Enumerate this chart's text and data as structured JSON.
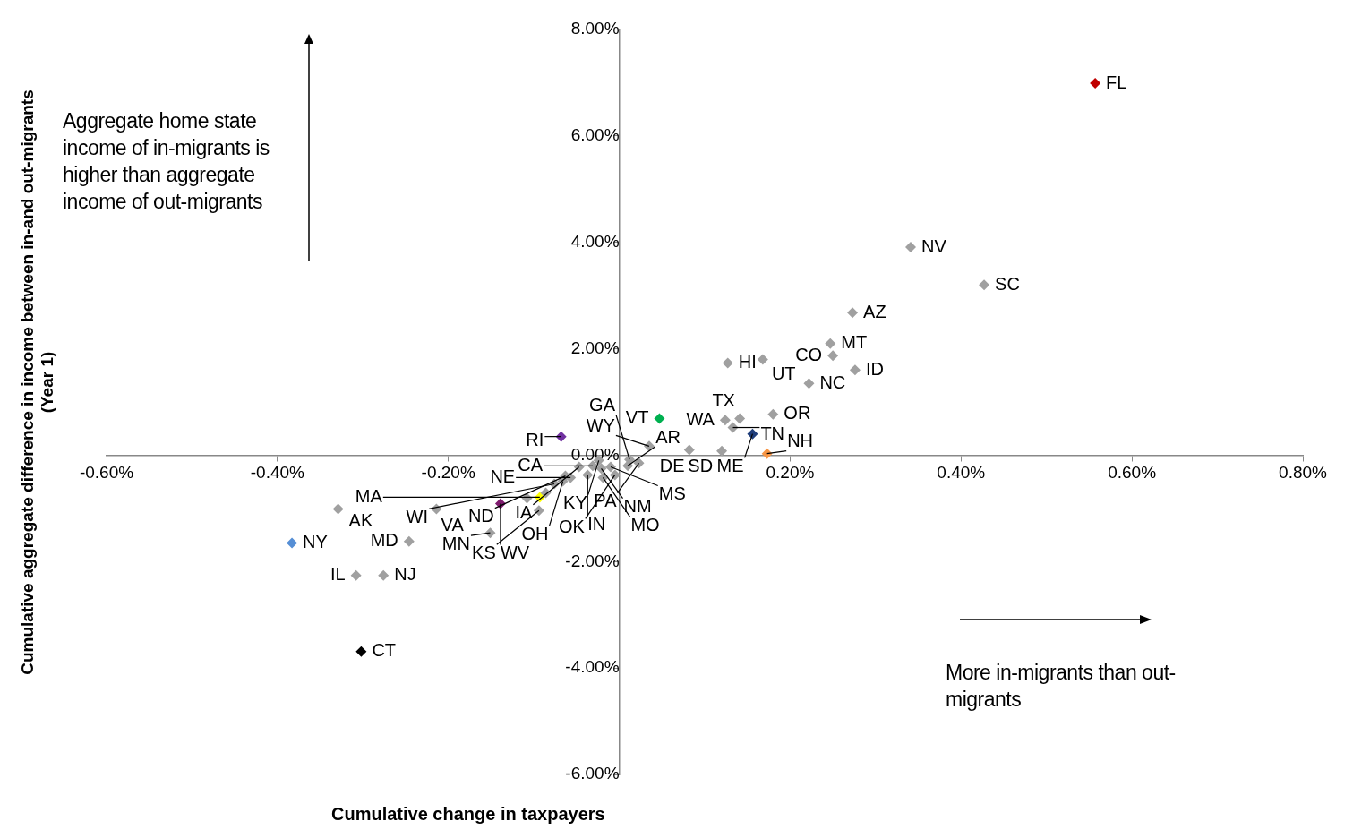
{
  "chart_data": {
    "type": "scatter",
    "xlabel": "Cumulative change in taxpayers",
    "ylabel": "Cumulative aggregate difference in income between in-and out-migrants\n(Year 1)",
    "marker": "diamond",
    "xlim": [
      -0.6,
      0.8
    ],
    "xticks": [
      {
        "value": -0.6,
        "label": "-0.60%"
      },
      {
        "value": -0.4,
        "label": "-0.40%"
      },
      {
        "value": -0.2,
        "label": "-0.20%"
      },
      {
        "value": 0,
        "label": null
      },
      {
        "value": 0.2,
        "label": "0.20%"
      },
      {
        "value": 0.4,
        "label": "0.40%"
      },
      {
        "value": 0.6,
        "label": "0.60%"
      },
      {
        "value": 0.8,
        "label": "0.80%"
      }
    ],
    "ylim": [
      -6,
      8
    ],
    "yticks": [
      {
        "value": -6,
        "label": "-6.00%"
      },
      {
        "value": -4,
        "label": "-4.00%"
      },
      {
        "value": -2,
        "label": "-2.00%"
      },
      {
        "value": 0,
        "label": "0.00%"
      },
      {
        "value": 2,
        "label": "2.00%"
      },
      {
        "value": 4,
        "label": "4.00%"
      },
      {
        "value": 6,
        "label": "6.00%"
      },
      {
        "value": 8,
        "label": "8.00%"
      }
    ],
    "series": [
      {
        "color": "#a0a0a0",
        "x": [
          0.341,
          0.427,
          0.273,
          0.247,
          0.25,
          0.276,
          0.222,
          0.168,
          0.127,
          0.18,
          0.124,
          0.141,
          0.133,
          0.12,
          0.035,
          0.082,
          -0.024,
          -0.031,
          -0.021,
          -0.01,
          0.01,
          0.012,
          0.023,
          -0.047,
          -0.037,
          -0.019,
          -0.005,
          -0.066,
          -0.057,
          -0.063,
          -0.076,
          -0.094,
          -0.151,
          -0.329,
          -0.214,
          -0.246,
          -0.276,
          -0.308,
          -0.108,
          -0.086
        ],
        "values": [
          3.91,
          3.2,
          2.68,
          2.1,
          1.87,
          1.6,
          1.35,
          1.8,
          1.73,
          0.77,
          0.66,
          0.69,
          0.52,
          0.08,
          0.17,
          0.1,
          -0.1,
          -0.2,
          -0.25,
          -0.22,
          -0.2,
          -0.08,
          -0.15,
          -0.22,
          -0.37,
          -0.42,
          -0.37,
          -0.49,
          -0.42,
          -0.39,
          -0.54,
          -1.04,
          -1.46,
          -1.01,
          -1.01,
          -1.62,
          -2.26,
          -2.26,
          -0.81,
          -0.71
        ]
      },
      {
        "color": "#c00000",
        "x": [
          0.557
        ],
        "values": [
          6.99
        ]
      },
      {
        "color": "#558ed5",
        "x": [
          -0.383
        ],
        "values": [
          -1.65
        ]
      },
      {
        "color": "#000000",
        "x": [
          -0.302
        ],
        "values": [
          -3.69
        ]
      },
      {
        "color": "#00b050",
        "x": [
          0.047
        ],
        "values": [
          0.69
        ]
      },
      {
        "color": "#7030a0",
        "x": [
          -0.068
        ],
        "values": [
          0.35
        ]
      },
      {
        "color": "#7f1a6e",
        "x": [
          -0.139
        ],
        "values": [
          -0.91
        ]
      },
      {
        "color": "#ffff00",
        "x": [
          -0.093
        ],
        "values": [
          -0.79
        ]
      },
      {
        "color": "#1f3d7a",
        "x": [
          0.156
        ],
        "values": [
          0.4
        ]
      },
      {
        "color": "#f79646",
        "x": [
          0.173
        ],
        "values": [
          0.03
        ]
      }
    ],
    "annotations": [
      "Aggregate home state income of in-migrants is higher than aggregate income of out-migrants",
      "More in-migrants than out-migrants",
      {
        "text": "FL",
        "x": 0.557,
        "y": 6.99
      },
      {
        "text": "NV",
        "x": 0.341,
        "y": 3.91
      },
      {
        "text": "SC",
        "x": 0.427,
        "y": 3.2
      },
      {
        "text": "AZ",
        "x": 0.273,
        "y": 2.68
      },
      {
        "text": "MT",
        "x": 0.247,
        "y": 2.1
      },
      {
        "text": "CO",
        "x": 0.25,
        "y": 1.87
      },
      {
        "text": "ID",
        "x": 0.276,
        "y": 1.6
      },
      {
        "text": "NC",
        "x": 0.222,
        "y": 1.35
      },
      {
        "text": "UT",
        "x": 0.168,
        "y": 1.8
      },
      {
        "text": "HI",
        "x": 0.127,
        "y": 1.73
      },
      {
        "text": "OR",
        "x": 0.18,
        "y": 0.77
      },
      {
        "text": "WA",
        "x": 0.124,
        "y": 0.66
      },
      {
        "text": "TX",
        "x": 0.141,
        "y": 0.69
      },
      {
        "text": "TN",
        "x": 0.133,
        "y": 0.52
      },
      {
        "text": "ME",
        "x": 0.156,
        "y": 0.4
      },
      {
        "text": "NH",
        "x": 0.173,
        "y": 0.03
      },
      {
        "text": "SD",
        "x": 0.12,
        "y": 0.08
      },
      {
        "text": "DE",
        "x": 0.082,
        "y": 0.1
      },
      {
        "text": "WY",
        "x": 0.035,
        "y": 0.17
      },
      {
        "text": "VT",
        "x": 0.047,
        "y": 0.69
      },
      {
        "text": "RI",
        "x": -0.068,
        "y": 0.35
      },
      {
        "text": "KY",
        "x": -0.024,
        "y": -0.1
      },
      {
        "text": "CA",
        "x": -0.031,
        "y": -0.2
      },
      {
        "text": "NM",
        "x": -0.021,
        "y": -0.25
      },
      {
        "text": "MS",
        "x": -0.01,
        "y": -0.22
      },
      {
        "text": "AR",
        "x": 0.01,
        "y": -0.2
      },
      {
        "text": "GA",
        "x": 0.012,
        "y": -0.08
      },
      {
        "text": "PA",
        "x": 0.023,
        "y": -0.15
      },
      {
        "text": "IA",
        "x": -0.047,
        "y": -0.22
      },
      {
        "text": "IN",
        "x": -0.037,
        "y": -0.37
      },
      {
        "text": "MO",
        "x": -0.019,
        "y": -0.42
      },
      {
        "text": "OK",
        "x": -0.005,
        "y": -0.37
      },
      {
        "text": "OH",
        "x": -0.066,
        "y": -0.49
      },
      {
        "text": "NE",
        "x": -0.057,
        "y": -0.42
      },
      {
        "text": "ND",
        "x": -0.063,
        "y": -0.39
      },
      {
        "text": "WI",
        "x": -0.076,
        "y": -0.54
      },
      {
        "text": "MA",
        "x": -0.093,
        "y": -0.79
      },
      {
        "text": "WV",
        "x": -0.139,
        "y": -0.91
      },
      {
        "text": "KS",
        "x": -0.094,
        "y": -1.04
      },
      {
        "text": "MN",
        "x": -0.151,
        "y": -1.46
      },
      {
        "text": "VA",
        "x": -0.214,
        "y": -1.01
      },
      {
        "text": "AK",
        "x": -0.329,
        "y": -1.01
      },
      {
        "text": "MD",
        "x": -0.246,
        "y": -1.62
      },
      {
        "text": "NJ",
        "x": -0.276,
        "y": -2.26
      },
      {
        "text": "IL",
        "x": -0.308,
        "y": -2.26
      },
      {
        "text": "NY",
        "x": -0.383,
        "y": -1.65
      },
      {
        "text": "CT",
        "x": -0.302,
        "y": -3.69
      }
    ]
  }
}
